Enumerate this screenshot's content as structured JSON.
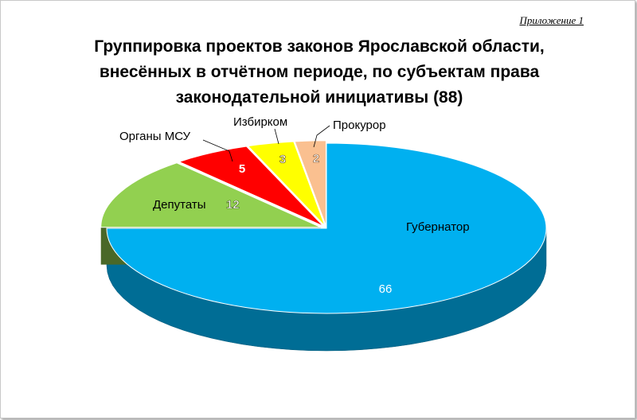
{
  "appendix_label": "Приложение 1",
  "chart_data": {
    "type": "pie",
    "title_lines": [
      "Группировка проектов законов Ярославской области,",
      "внесённых в отчётном периоде, по субъектам права",
      "законодательной инициативы (88)"
    ],
    "slices": [
      {
        "label": "Губернатор",
        "value": 66,
        "color": "#00b0f0"
      },
      {
        "label": "Депутаты",
        "value": 12,
        "color": "#92d050"
      },
      {
        "label": "Органы МСУ",
        "value": 5,
        "color": "#ff0000"
      },
      {
        "label": "Избирком",
        "value": 3,
        "color": "#ffff00"
      },
      {
        "label": "Прокурор",
        "value": 2,
        "color": "#fac090"
      }
    ],
    "total": 88,
    "legend": "none",
    "data_labels": "values"
  }
}
